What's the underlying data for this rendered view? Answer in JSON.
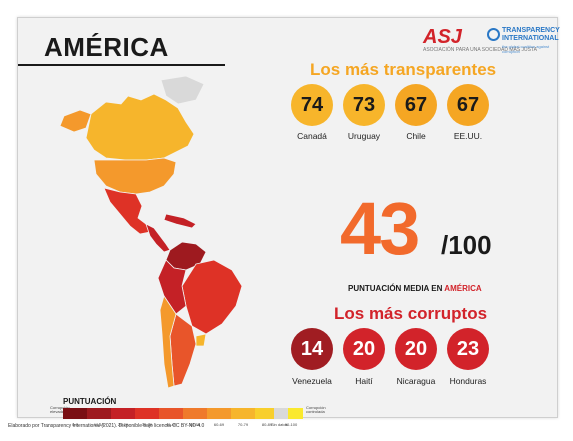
{
  "header": {
    "title": "AMÉRICA"
  },
  "logos": {
    "asj": "ASJ",
    "asj_sub": "ASOCIACIÓN PARA UNA SOCIEDAD MÁS JUSTA",
    "ti": "TRANSPARENCY INTERNATIONAL",
    "ti_sub": "the global coalition against corruption"
  },
  "most_transparent": {
    "title": "Los más transparentes",
    "color": "#f5a623",
    "items": [
      {
        "score": "74",
        "country": "Canadá",
        "color": "#f7b52b"
      },
      {
        "score": "73",
        "country": "Uruguay",
        "color": "#f7b52b"
      },
      {
        "score": "67",
        "country": "Chile",
        "color": "#f5a623"
      },
      {
        "score": "67",
        "country": "EE.UU.",
        "color": "#f5a623"
      }
    ]
  },
  "average": {
    "score": "43",
    "denominator": "/100",
    "label_prefix": "PUNTUACIÓN MEDIA EN ",
    "label_region": "AMÉRICA",
    "color": "#f26a2c"
  },
  "most_corrupt": {
    "title": "Los más corruptos",
    "color": "#d2232a",
    "items": [
      {
        "score": "14",
        "country": "Venezuela",
        "color": "#a01d22"
      },
      {
        "score": "20",
        "country": "Haití",
        "color": "#d2232a"
      },
      {
        "score": "20",
        "country": "Nicaragua",
        "color": "#d2232a"
      },
      {
        "score": "23",
        "country": "Honduras",
        "color": "#d2232a"
      }
    ]
  },
  "legend": {
    "title": "PUNTUACIÓN",
    "left_label": "Corrupción elevada",
    "right_label": "Corrupción controlada",
    "no_data": "Sin datos",
    "bins": [
      {
        "label": "0-9",
        "color": "#7a0f14"
      },
      {
        "label": "10-19",
        "color": "#9e1a1f"
      },
      {
        "label": "20-29",
        "color": "#c42126"
      },
      {
        "label": "30-39",
        "color": "#de3226"
      },
      {
        "label": "40-49",
        "color": "#e8552a"
      },
      {
        "label": "50-59",
        "color": "#ef7a2b"
      },
      {
        "label": "60-69",
        "color": "#f4992c"
      },
      {
        "label": "70-79",
        "color": "#f6b52c"
      },
      {
        "label": "80-89",
        "color": "#f8cf2c"
      },
      {
        "label": "90-100",
        "color": "#fae92e"
      }
    ]
  },
  "footer": "Elaborado por Transparency International (2021). Disponible bajo licencia CC BY-ND 4.0"
}
